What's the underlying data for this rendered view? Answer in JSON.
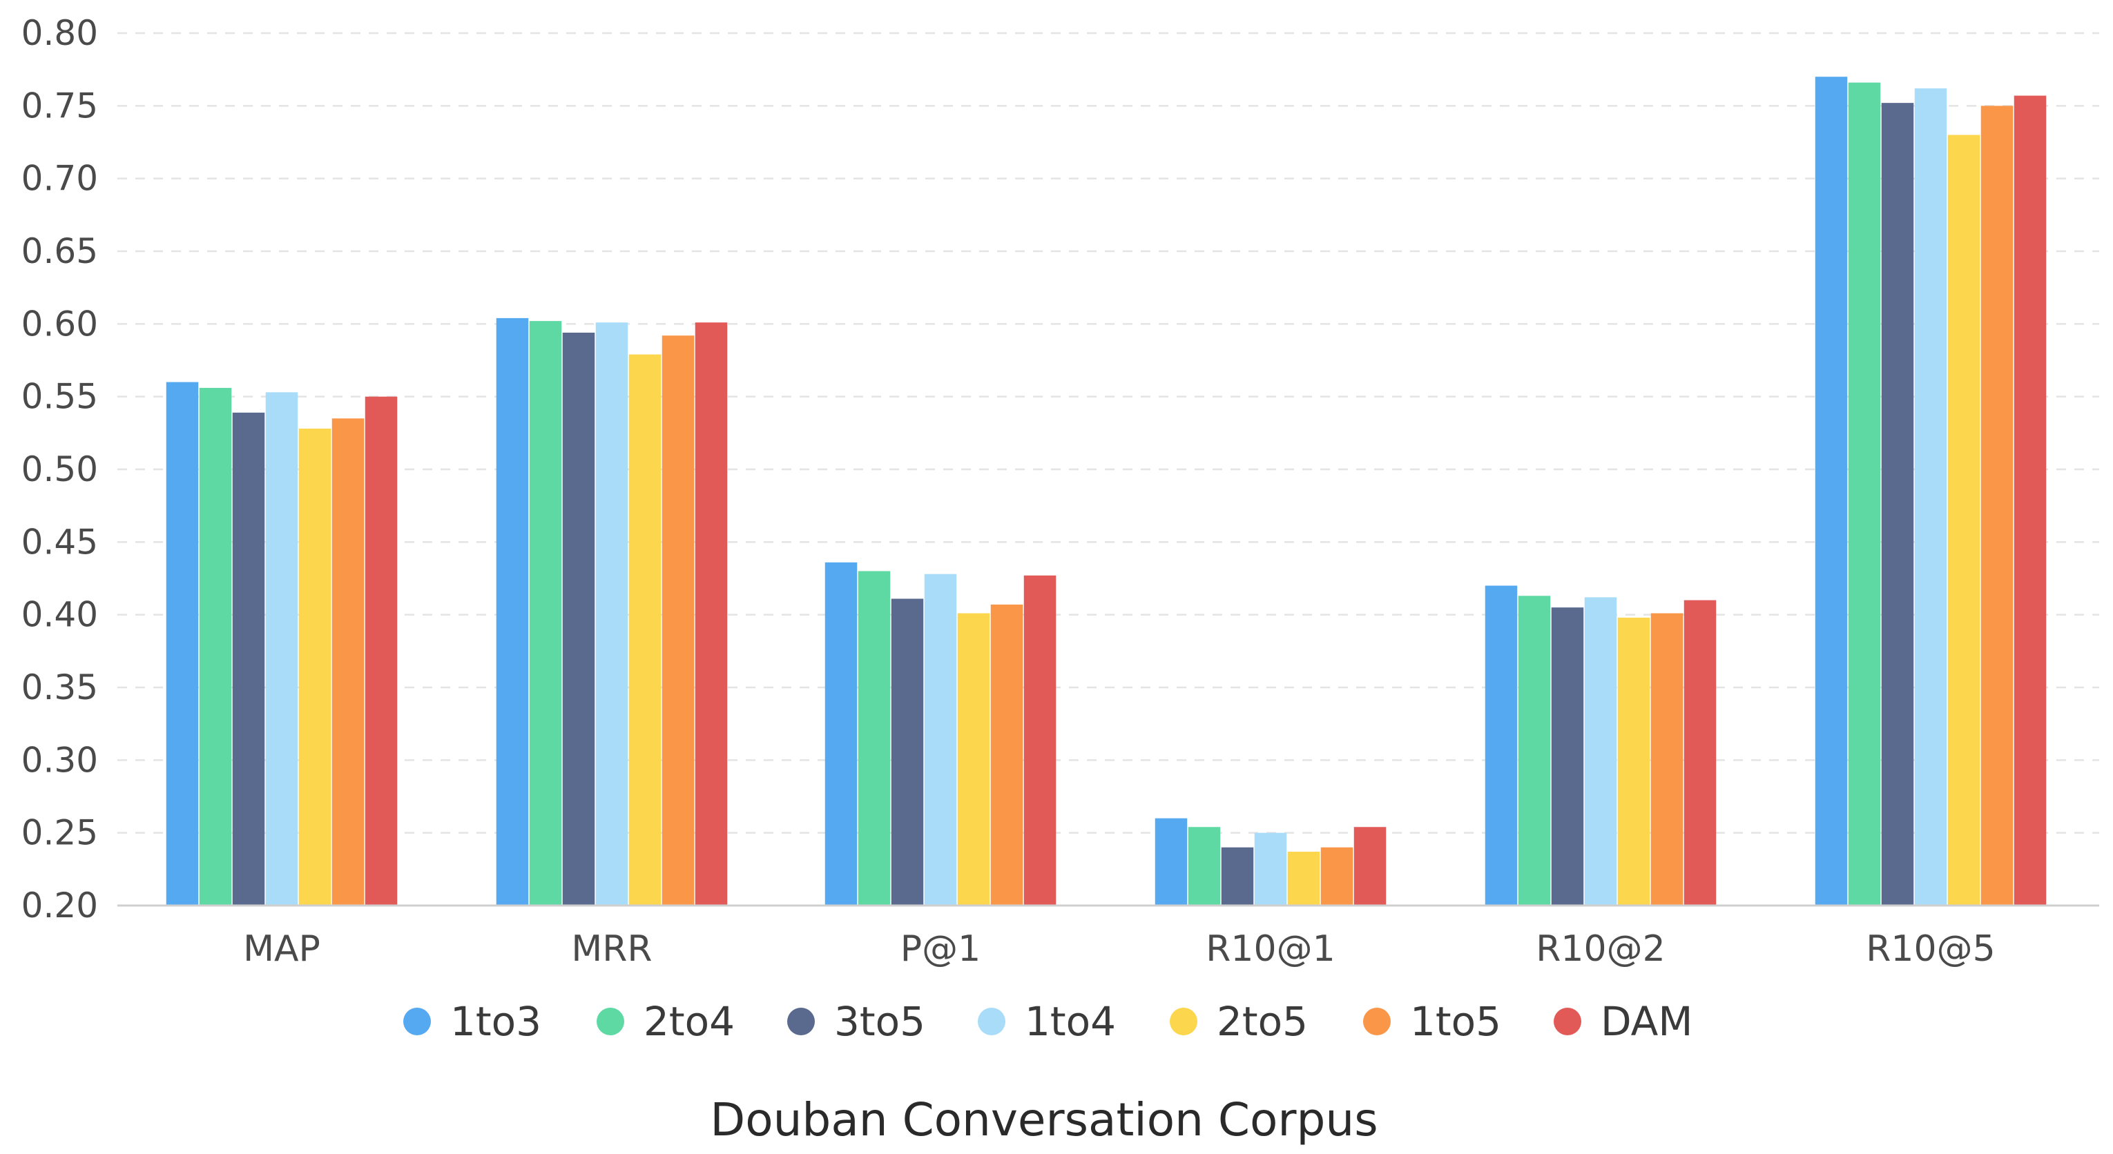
{
  "chart_data": {
    "type": "bar",
    "title": "Douban Conversation Corpus",
    "xlabel": "",
    "ylabel": "",
    "ylim": [
      0.2,
      0.8
    ],
    "yticks": [
      "0.20",
      "0.25",
      "0.30",
      "0.35",
      "0.40",
      "0.45",
      "0.50",
      "0.55",
      "0.60",
      "0.65",
      "0.70",
      "0.75",
      "0.80"
    ],
    "grid": true,
    "legend_position": "bottom",
    "categories": [
      "MAP",
      "MRR",
      "P@1",
      "R10@1",
      "R10@2",
      "R10@5"
    ],
    "series": [
      {
        "name": "1to3",
        "color": "#55a9f0",
        "values": [
          0.56,
          0.604,
          0.436,
          0.26,
          0.42,
          0.77
        ]
      },
      {
        "name": "2to4",
        "color": "#5fd9a4",
        "values": [
          0.556,
          0.602,
          0.43,
          0.254,
          0.413,
          0.766
        ]
      },
      {
        "name": "3to5",
        "color": "#5a6a8f",
        "values": [
          0.539,
          0.594,
          0.411,
          0.24,
          0.405,
          0.752
        ]
      },
      {
        "name": "1to4",
        "color": "#a8dcf9",
        "values": [
          0.553,
          0.601,
          0.428,
          0.25,
          0.412,
          0.762
        ]
      },
      {
        "name": "2to5",
        "color": "#fcd64c",
        "values": [
          0.528,
          0.579,
          0.401,
          0.237,
          0.398,
          0.73
        ]
      },
      {
        "name": "1to5",
        "color": "#fa9648",
        "values": [
          0.535,
          0.592,
          0.407,
          0.24,
          0.401,
          0.75
        ]
      },
      {
        "name": "DAM",
        "color": "#e25a58",
        "values": [
          0.55,
          0.601,
          0.427,
          0.254,
          0.41,
          0.757
        ]
      }
    ]
  }
}
